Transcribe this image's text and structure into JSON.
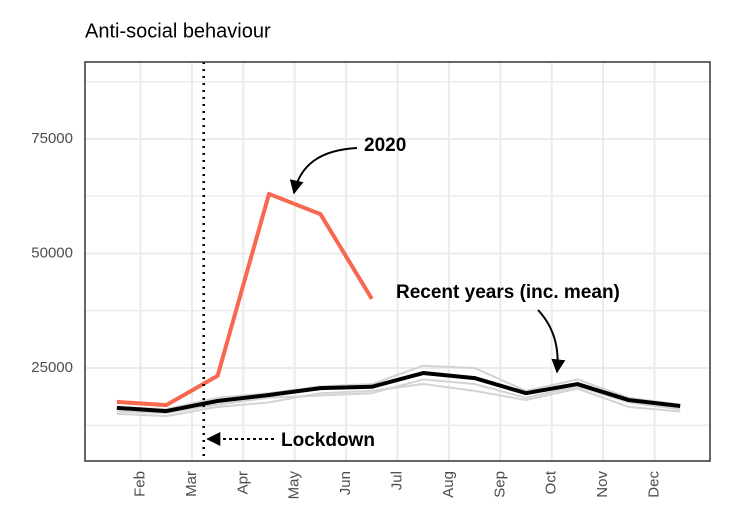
{
  "chart_data": {
    "type": "line",
    "title": "Anti-social behaviour",
    "xlim": [
      0.92,
      13.08
    ],
    "xticks": [
      {
        "value": 2,
        "label": "Feb"
      },
      {
        "value": 3,
        "label": "Mar"
      },
      {
        "value": 4,
        "label": "Apr"
      },
      {
        "value": 5,
        "label": "May"
      },
      {
        "value": 6,
        "label": "Jun"
      },
      {
        "value": 7,
        "label": "Jul"
      },
      {
        "value": 8,
        "label": "Aug"
      },
      {
        "value": 9,
        "label": "Sep"
      },
      {
        "value": 10,
        "label": "Oct"
      },
      {
        "value": 11,
        "label": "Nov"
      },
      {
        "value": 12,
        "label": "Dec"
      }
    ],
    "ylim": [
      4700,
      91800
    ],
    "yticks": [
      25000,
      50000,
      75000
    ],
    "grid": true,
    "series": [
      {
        "color": "#d3d3d3",
        "x": [
          1.54,
          2.5,
          3.5,
          4.5,
          5.5,
          6.5,
          7.5,
          8.5,
          9.5,
          10.5,
          11.5,
          12.5
        ],
        "values": [
          15000,
          14500,
          16500,
          17500,
          19500,
          20000,
          21500,
          20000,
          18000,
          20500,
          16500,
          15500
        ]
      },
      {
        "color": "#d3d3d3",
        "x": [
          1.54,
          2.5,
          3.5,
          4.5,
          5.5,
          6.5,
          7.5,
          8.5,
          9.5,
          10.5,
          11.5,
          12.5
        ],
        "values": [
          16500,
          16000,
          18500,
          19500,
          21000,
          21500,
          25500,
          25000,
          20000,
          22500,
          18500,
          17000
        ]
      },
      {
        "color": "#d3d3d3",
        "x": [
          1.54,
          2.5,
          3.5,
          4.5,
          5.5,
          6.5,
          7.5,
          8.5,
          9.5,
          10.5,
          11.5,
          12.5
        ],
        "values": [
          15500,
          15200,
          17000,
          18500,
          19000,
          19500,
          22500,
          21500,
          18500,
          21000,
          17500,
          16000
        ]
      },
      {
        "color": "#000000",
        "x": [
          1.54,
          2.5,
          3.5,
          4.5,
          5.5,
          6.5,
          7.5,
          8.5,
          9.5,
          10.5,
          11.5,
          12.5
        ],
        "values": [
          16300,
          15600,
          17800,
          19100,
          20600,
          20900,
          23900,
          22800,
          19500,
          21500,
          18000,
          16700
        ]
      },
      {
        "color": "#f8674f",
        "x": [
          1.54,
          2.5,
          3.5,
          4.5,
          5.5,
          6.5
        ],
        "values": [
          17600,
          16900,
          23300,
          63000,
          58600,
          40100
        ]
      }
    ],
    "lockdown_x": 3.23,
    "annotations": [
      "2020",
      "Recent years (inc. mean)",
      "Lockdown"
    ]
  }
}
